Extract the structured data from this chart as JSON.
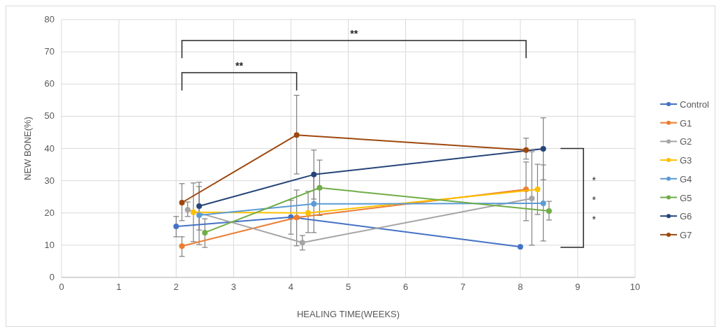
{
  "chart_data": {
    "type": "line",
    "xlabel": "HEALING TIME(WEEKS)",
    "ylabel": "NEW BONE(%)",
    "xlim": [
      0,
      10
    ],
    "xticks": [
      0,
      1,
      2,
      3,
      4,
      5,
      6,
      7,
      8,
      9,
      10
    ],
    "ylim": [
      0,
      80
    ],
    "yticks": [
      0,
      10,
      20,
      30,
      40,
      50,
      60,
      70,
      80
    ],
    "grid": true,
    "legend": "right",
    "marker": "circle",
    "line_style": "solid",
    "series": [
      {
        "name": "Control",
        "color": "#4472c4",
        "x": [
          2.0,
          4.0,
          8.0
        ],
        "values": [
          15.8,
          18.7,
          9.5
        ],
        "errors": [
          [
            12.6,
            18.9
          ],
          [
            13.4,
            23.9
          ],
          null
        ]
      },
      {
        "name": "G1",
        "color": "#ed7d31",
        "x": [
          2.1,
          4.1,
          8.1
        ],
        "values": [
          9.7,
          18.6,
          27.3
        ],
        "errors": [
          [
            6.5,
            12.6
          ],
          [
            9.8,
            27.1
          ],
          [
            17.6,
            35.8
          ]
        ]
      },
      {
        "name": "G2",
        "color": "#a5a5a5",
        "x": [
          2.2,
          4.2,
          8.2
        ],
        "values": [
          21.0,
          10.8,
          24.5
        ],
        "errors": [
          [
            18.9,
            23.4
          ],
          [
            8.5,
            13.0
          ],
          [
            10.0,
            39.0
          ]
        ]
      },
      {
        "name": "G3",
        "color": "#ffc000",
        "x": [
          2.3,
          4.3,
          8.3
        ],
        "values": [
          20.2,
          20.0,
          27.3
        ],
        "errors": [
          [
            11.1,
            29.3
          ],
          [
            13.9,
            26.7
          ],
          [
            19.5,
            35.1
          ]
        ]
      },
      {
        "name": "G4",
        "color": "#5b9bd5",
        "x": [
          2.4,
          4.4,
          8.4
        ],
        "values": [
          19.3,
          22.8,
          23.0
        ],
        "errors": [
          [
            10.2,
            28.2
          ],
          [
            13.9,
            31.7
          ],
          [
            11.3,
            34.9
          ]
        ]
      },
      {
        "name": "G5",
        "color": "#70ad47",
        "x": [
          2.5,
          4.5,
          8.5
        ],
        "values": [
          13.9,
          27.8,
          20.6
        ],
        "errors": [
          [
            9.3,
            18.2
          ],
          [
            19.2,
            36.4
          ],
          [
            17.8,
            23.6
          ]
        ]
      },
      {
        "name": "G6",
        "color": "#264478",
        "x": [
          2.4,
          4.4,
          8.4
        ],
        "values": [
          22.1,
          31.9,
          39.9
        ],
        "errors": [
          [
            14.7,
            29.5
          ],
          [
            24.3,
            39.5
          ],
          [
            30.3,
            49.5
          ]
        ]
      },
      {
        "name": "G7",
        "color": "#9e480e",
        "x": [
          2.1,
          4.1,
          8.1
        ],
        "values": [
          23.2,
          44.2,
          39.5
        ],
        "errors": [
          [
            17.6,
            29.1
          ],
          [
            32.1,
            56.5
          ],
          [
            36.7,
            43.2
          ]
        ]
      }
    ],
    "annotations": [
      "**",
      "**",
      "*",
      "*",
      "*"
    ]
  }
}
